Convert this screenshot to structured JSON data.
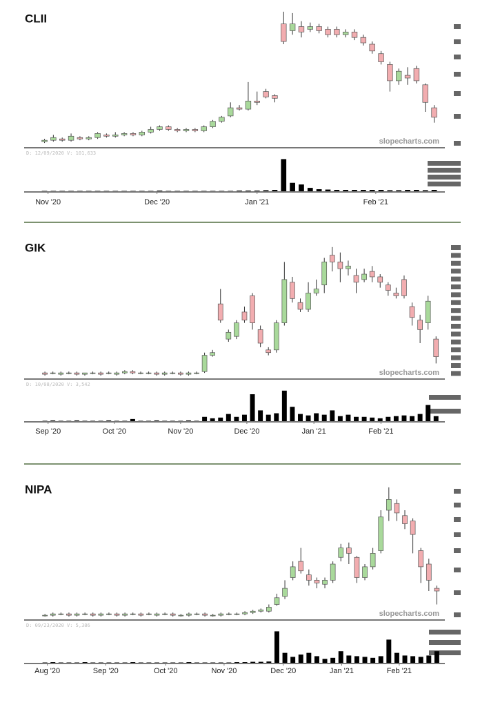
{
  "chart_data": [
    {
      "type": "candlestick",
      "title": "CLII",
      "watermark": "slopecharts.com",
      "annotation": "D: 12/09/2020 V: 101,633",
      "up_color": "#a9d99b",
      "down_color": "#f2adb0",
      "volume_color": "#000000",
      "open": [
        3,
        4,
        5,
        4,
        6,
        5,
        6,
        8,
        7,
        8,
        9,
        8,
        10,
        12,
        14,
        12,
        11,
        12,
        11,
        14,
        18,
        22,
        28,
        27,
        33,
        40,
        37,
        90,
        85,
        88,
        86,
        88,
        86,
        86,
        82,
        84,
        80,
        75,
        68,
        60,
        48,
        52,
        57,
        45,
        28
      ],
      "high": [
        5,
        8,
        6,
        9,
        7,
        7,
        10,
        9,
        10,
        10,
        10,
        11,
        14,
        15,
        15,
        13,
        13,
        13,
        15,
        19,
        22,
        32,
        30,
        47,
        40,
        42,
        38,
        99,
        98,
        92,
        91,
        90,
        88,
        88,
        86,
        86,
        82,
        77,
        70,
        62,
        57,
        58,
        59,
        46,
        30
      ],
      "low": [
        2,
        3,
        3,
        3,
        4,
        4,
        5,
        6,
        6,
        7,
        7,
        7,
        9,
        11,
        11,
        10,
        10,
        10,
        10,
        13,
        17,
        21,
        26,
        26,
        30,
        35,
        32,
        75,
        82,
        80,
        84,
        83,
        80,
        80,
        80,
        78,
        74,
        68,
        60,
        40,
        45,
        45,
        46,
        25,
        17
      ],
      "close": [
        4,
        6,
        4,
        7,
        5,
        6,
        9,
        7,
        8,
        9,
        8,
        10,
        12,
        14,
        12,
        11,
        12,
        11,
        14,
        18,
        21,
        28,
        27,
        33,
        32,
        36,
        35,
        77,
        90,
        84,
        88,
        85,
        82,
        82,
        84,
        80,
        76,
        70,
        62,
        48,
        55,
        50,
        48,
        32,
        21
      ],
      "volume": [
        1,
        1,
        1,
        1,
        1,
        1,
        1,
        1,
        1,
        1,
        1,
        1,
        1,
        2,
        1,
        1,
        1,
        1,
        1,
        1,
        1,
        1,
        2,
        2,
        2,
        3,
        4,
        95,
        25,
        20,
        10,
        6,
        5,
        4,
        4,
        4,
        4,
        4,
        4,
        3,
        3,
        4,
        4,
        3,
        4
      ],
      "xlim": [
        -2.3,
        45.2
      ],
      "ylim": [
        0,
        100
      ],
      "volume_lim": [
        0,
        100
      ],
      "xticks": [
        {
          "value": 0.4,
          "label": "Nov '20"
        },
        {
          "value": 12.7,
          "label": "Dec '20"
        },
        {
          "value": 24,
          "label": "Jan '21"
        },
        {
          "value": 37.4,
          "label": "Feb '21"
        }
      ]
    },
    {
      "type": "candlestick",
      "title": "GIK",
      "watermark": "slopecharts.com",
      "annotation": "D: 10/08/2020 V: 3,542",
      "up_color": "#a9d99b",
      "down_color": "#f2adb0",
      "volume_color": "#000000",
      "open": [
        3,
        3,
        2,
        3,
        3,
        2,
        3,
        3,
        3,
        2,
        3,
        4,
        3,
        3,
        3,
        2,
        3,
        3,
        2,
        3,
        4,
        16,
        54,
        28,
        30,
        48,
        60,
        35,
        20,
        20,
        40,
        70,
        55,
        50,
        62,
        68,
        90,
        85,
        80,
        75,
        72,
        78,
        74,
        68,
        62,
        72,
        52,
        42,
        40,
        28
      ],
      "high": [
        4,
        4,
        4,
        4,
        4,
        3,
        4,
        4,
        4,
        4,
        5,
        5,
        4,
        4,
        4,
        4,
        4,
        4,
        4,
        4,
        18,
        20,
        65,
        35,
        42,
        52,
        62,
        38,
        22,
        42,
        85,
        74,
        58,
        70,
        72,
        88,
        96,
        92,
        86,
        80,
        80,
        82,
        76,
        70,
        66,
        75,
        55,
        46,
        60,
        30
      ],
      "low": [
        1,
        2,
        1,
        2,
        1,
        1,
        2,
        1,
        2,
        1,
        2,
        2,
        2,
        2,
        1,
        1,
        2,
        1,
        1,
        2,
        3,
        15,
        40,
        26,
        28,
        40,
        35,
        22,
        16,
        18,
        38,
        55,
        48,
        48,
        60,
        62,
        78,
        70,
        75,
        62,
        70,
        70,
        66,
        60,
        58,
        58,
        38,
        25,
        35,
        10
      ],
      "close": [
        2,
        3,
        3,
        3,
        2,
        3,
        3,
        2,
        3,
        3,
        4,
        3,
        3,
        3,
        2,
        3,
        3,
        2,
        3,
        3,
        16,
        18,
        42,
        33,
        40,
        42,
        40,
        25,
        18,
        40,
        72,
        58,
        50,
        62,
        65,
        85,
        85,
        80,
        82,
        70,
        76,
        74,
        70,
        64,
        60,
        60,
        44,
        35,
        56,
        15
      ],
      "volume": [
        1,
        2,
        1,
        1,
        2,
        1,
        1,
        1,
        2,
        1,
        1,
        6,
        1,
        1,
        2,
        1,
        1,
        1,
        2,
        1,
        12,
        8,
        10,
        20,
        12,
        18,
        75,
        30,
        18,
        22,
        85,
        40,
        20,
        16,
        22,
        18,
        30,
        14,
        18,
        12,
        12,
        10,
        8,
        12,
        14,
        16,
        14,
        20,
        45,
        14
      ],
      "xlim": [
        -2.6,
        50.1
      ],
      "ylim": [
        0,
        100
      ],
      "volume_lim": [
        0,
        100
      ],
      "xticks": [
        {
          "value": 0.4,
          "label": "Sep '20"
        },
        {
          "value": 8.7,
          "label": "Oct '20"
        },
        {
          "value": 17,
          "label": "Nov '20"
        },
        {
          "value": 25.3,
          "label": "Dec '20"
        },
        {
          "value": 33.7,
          "label": "Jan '21"
        },
        {
          "value": 42.1,
          "label": "Feb '21"
        }
      ]
    },
    {
      "type": "candlestick",
      "title": "NIPA",
      "watermark": "slopecharts.com",
      "annotation": "D: 09/23/2020 V: 5,386",
      "up_color": "#a9d99b",
      "down_color": "#f2adb0",
      "volume_color": "#000000",
      "open": [
        2,
        2,
        3,
        3,
        2,
        3,
        3,
        2,
        3,
        3,
        2,
        3,
        3,
        3,
        2,
        3,
        3,
        2,
        2,
        3,
        3,
        2,
        2,
        3,
        3,
        3,
        4,
        5,
        5,
        10,
        16,
        30,
        42,
        32,
        28,
        25,
        28,
        45,
        52,
        45,
        30,
        38,
        50,
        80,
        85,
        76,
        72,
        50,
        40,
        22
      ],
      "high": [
        3,
        4,
        4,
        4,
        4,
        4,
        4,
        4,
        4,
        4,
        4,
        4,
        4,
        4,
        4,
        4,
        4,
        3,
        4,
        4,
        4,
        3,
        4,
        4,
        4,
        5,
        6,
        7,
        10,
        18,
        28,
        42,
        52,
        36,
        30,
        30,
        42,
        55,
        56,
        46,
        40,
        52,
        80,
        97,
        88,
        80,
        74,
        52,
        44,
        24
      ],
      "low": [
        1,
        1,
        2,
        1,
        1,
        2,
        1,
        1,
        2,
        1,
        1,
        2,
        1,
        2,
        1,
        2,
        1,
        1,
        1,
        2,
        1,
        1,
        1,
        2,
        2,
        2,
        3,
        4,
        4,
        9,
        14,
        28,
        33,
        24,
        22,
        22,
        26,
        42,
        40,
        26,
        28,
        36,
        48,
        72,
        72,
        66,
        48,
        26,
        20,
        10
      ],
      "close": [
        2,
        3,
        3,
        2,
        3,
        3,
        2,
        3,
        3,
        2,
        3,
        3,
        2,
        3,
        3,
        3,
        2,
        2,
        3,
        3,
        2,
        2,
        3,
        3,
        3,
        4,
        5,
        6,
        8,
        15,
        22,
        38,
        35,
        28,
        26,
        28,
        40,
        52,
        48,
        30,
        38,
        48,
        75,
        88,
        78,
        70,
        62,
        38,
        28,
        20
      ],
      "volume": [
        1,
        2,
        1,
        1,
        1,
        2,
        1,
        1,
        1,
        1,
        1,
        2,
        1,
        1,
        1,
        1,
        1,
        1,
        2,
        1,
        1,
        1,
        1,
        1,
        2,
        2,
        3,
        3,
        4,
        95,
        30,
        18,
        25,
        30,
        20,
        12,
        15,
        35,
        22,
        20,
        18,
        15,
        20,
        70,
        30,
        22,
        20,
        18,
        22,
        35
      ],
      "xlim": [
        -2.6,
        50.0
      ],
      "ylim": [
        0,
        100
      ],
      "volume_lim": [
        0,
        100
      ],
      "xticks": [
        {
          "value": 0.3,
          "label": "Aug '20"
        },
        {
          "value": 7.6,
          "label": "Sep '20"
        },
        {
          "value": 15.1,
          "label": "Oct '20"
        },
        {
          "value": 22.4,
          "label": "Nov '20"
        },
        {
          "value": 29.8,
          "label": "Dec '20"
        },
        {
          "value": 37.1,
          "label": "Jan '21"
        },
        {
          "value": 44.3,
          "label": "Feb '21"
        }
      ]
    }
  ]
}
